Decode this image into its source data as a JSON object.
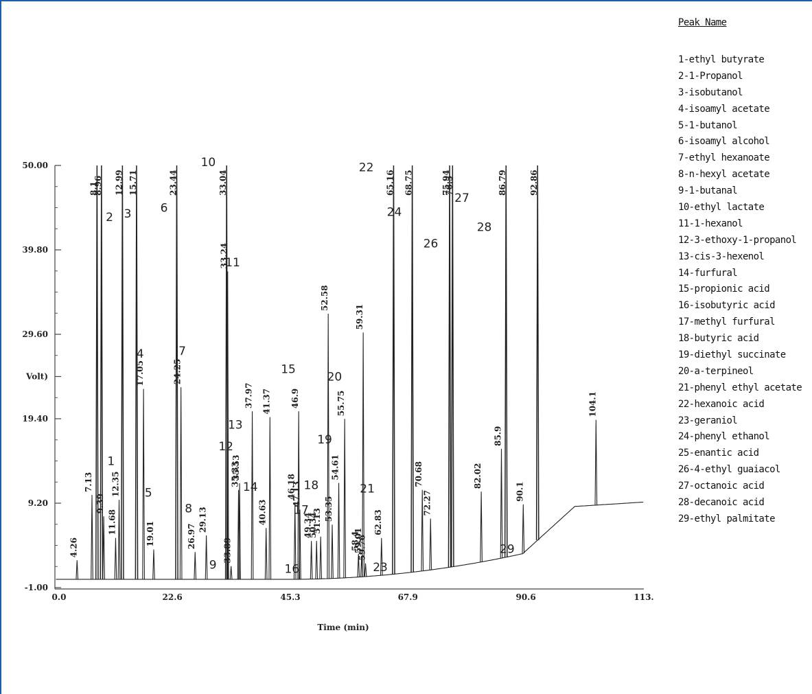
{
  "legend": {
    "title": "Peak Name",
    "items": [
      "1-ethyl butyrate",
      "2-1-Propanol",
      "3-isobutanol",
      "4-isoamyl acetate",
      "5-1-butanol",
      "6-isoamyl alcohol",
      "7-ethyl hexanoate",
      "8-n-hexyl acetate",
      "9-1-butanal",
      "10-ethyl lactate",
      "11-1-hexanol",
      "12-3-ethoxy-1-propanol",
      "13-cis-3-hexenol",
      "14-furfural",
      "15-propionic acid",
      "16-isobutyric acid",
      "17-methyl furfural",
      "18-butyric acid",
      "19-diethyl succinate",
      "20-a-terpineol",
      "21-phenyl ethyl acetate",
      "22-hexanoic acid",
      "23-geraniol",
      "24-phenyl ethanol",
      "25-enantic acid",
      "26-4-ethyl guaiacol",
      "27-octanoic acid",
      "28-decanoic acid",
      "29-ethyl palmitate"
    ]
  },
  "chart_data": {
    "type": "line",
    "xlabel": "Time (min)",
    "ylabel": "Volt)",
    "xlim": [
      0,
      113.3
    ],
    "ylim": [
      -1.0,
      50.0
    ],
    "x_ticks": [
      "0.0",
      "22.6",
      "45.3",
      "67.9",
      "90.6",
      "113."
    ],
    "x_tick_values": [
      0,
      22.6,
      45.3,
      67.9,
      90.6,
      113.3
    ],
    "y_ticks": [
      "50.00",
      "39.80",
      "29.60",
      "Volt)",
      "19.40",
      "9.20",
      "-1.00"
    ],
    "y_tick_values": [
      50.0,
      39.8,
      29.6,
      24.5,
      19.4,
      9.2,
      -1.0
    ],
    "peaks": [
      {
        "rt": 4.26,
        "h": 2.3,
        "label": "4.26"
      },
      {
        "rt": 7.13,
        "h": 10.2,
        "label": "7.13"
      },
      {
        "rt": 8.1,
        "h": 50.0,
        "label": "8.1"
      },
      {
        "rt": 8.96,
        "h": 50.0,
        "label": "8.96"
      },
      {
        "rt": 9.39,
        "h": 7.6,
        "label": "9.39"
      },
      {
        "rt": 11.68,
        "h": 5.0,
        "label": "11.68"
      },
      {
        "rt": 12.35,
        "h": 9.6,
        "label": "12.35"
      },
      {
        "rt": 12.99,
        "h": 50.0,
        "label": "12.99"
      },
      {
        "rt": 15.71,
        "h": 50.0,
        "label": "15.71"
      },
      {
        "rt": 17.05,
        "h": 23.0,
        "label": "17.05"
      },
      {
        "rt": 19.01,
        "h": 3.6,
        "label": "19.01"
      },
      {
        "rt": 23.44,
        "h": 50.0,
        "label": "23.44"
      },
      {
        "rt": 24.25,
        "h": 23.2,
        "label": "24.25"
      },
      {
        "rt": 26.97,
        "h": 3.3,
        "label": "26.97"
      },
      {
        "rt": 29.13,
        "h": 5.3,
        "label": "29.13"
      },
      {
        "rt": 33.04,
        "h": 50.0,
        "label": "33.04"
      },
      {
        "rt": 33.24,
        "h": 37.2,
        "label": "33.24"
      },
      {
        "rt": 33.89,
        "h": 1.6,
        "label": "33.89"
      },
      {
        "rt": 35.33,
        "h": 10.8,
        "label": "35.33"
      },
      {
        "rt": 35.53,
        "h": 11.6,
        "label": "35.53"
      },
      {
        "rt": 37.97,
        "h": 20.3,
        "label": "37.97"
      },
      {
        "rt": 40.63,
        "h": 6.2,
        "label": "40.63"
      },
      {
        "rt": 41.37,
        "h": 19.6,
        "label": "41.37"
      },
      {
        "rt": 46.18,
        "h": 9.3,
        "label": "46.18"
      },
      {
        "rt": 46.9,
        "h": 20.3,
        "label": "46.9"
      },
      {
        "rt": 47.13,
        "h": 8.4,
        "label": "47.13"
      },
      {
        "rt": 49.34,
        "h": 4.6,
        "label": "49.34"
      },
      {
        "rt": 50.34,
        "h": 4.6,
        "label": "50.34"
      },
      {
        "rt": 51.13,
        "h": 5.1,
        "label": "51.13"
      },
      {
        "rt": 52.58,
        "h": 32.0,
        "label": "52.58"
      },
      {
        "rt": 53.35,
        "h": 6.5,
        "label": "53.35"
      },
      {
        "rt": 54.61,
        "h": 11.5,
        "label": "54.61"
      },
      {
        "rt": 55.75,
        "h": 19.2,
        "label": "55.75"
      },
      {
        "rt": 58.4,
        "h": 2.8,
        "label": "58.4"
      },
      {
        "rt": 59.01,
        "h": 2.5,
        "label": "59.01"
      },
      {
        "rt": 59.31,
        "h": 29.5,
        "label": "59.31"
      },
      {
        "rt": 59.76,
        "h": 1.6,
        "label": "59.76"
      },
      {
        "rt": 62.83,
        "h": 4.5,
        "label": "62.83"
      },
      {
        "rt": 65.16,
        "h": 50.0,
        "label": "65.16"
      },
      {
        "rt": 68.75,
        "h": 50.0,
        "label": "68.75"
      },
      {
        "rt": 70.68,
        "h": 9.8,
        "label": "70.68"
      },
      {
        "rt": 72.27,
        "h": 6.2,
        "label": "72.27"
      },
      {
        "rt": 75.94,
        "h": 50.0,
        "label": "75.94"
      },
      {
        "rt": 76.5,
        "h": 50.0,
        "label": "76.5"
      },
      {
        "rt": 82.02,
        "h": 8.5,
        "label": "82.02"
      },
      {
        "rt": 85.9,
        "h": 13.2,
        "label": "85.9"
      },
      {
        "rt": 86.79,
        "h": 50.0,
        "label": "86.79"
      },
      {
        "rt": 90.1,
        "h": 5.9,
        "label": "90.1"
      },
      {
        "rt": 92.86,
        "h": 50.0,
        "label": "92.86"
      },
      {
        "rt": 104.1,
        "h": 10.3,
        "label": "104.1"
      }
    ],
    "peak_numbers": [
      {
        "n": "1",
        "x": 10.8,
        "y": 13.8
      },
      {
        "n": "2",
        "x": 10.5,
        "y": 43.3
      },
      {
        "n": "3",
        "x": 14.0,
        "y": 43.7
      },
      {
        "n": "4",
        "x": 16.4,
        "y": 26.8
      },
      {
        "n": "5",
        "x": 18.0,
        "y": 10.0
      },
      {
        "n": "6",
        "x": 21.0,
        "y": 44.4
      },
      {
        "n": "7",
        "x": 24.5,
        "y": 27.1
      },
      {
        "n": "8",
        "x": 25.7,
        "y": 8.1
      },
      {
        "n": "9",
        "x": 30.4,
        "y": 1.3
      },
      {
        "n": "10",
        "x": 29.5,
        "y": 49.9
      },
      {
        "n": "11",
        "x": 34.2,
        "y": 37.8
      },
      {
        "n": "12",
        "x": 32.9,
        "y": 15.6
      },
      {
        "n": "13",
        "x": 34.7,
        "y": 18.2
      },
      {
        "n": "14",
        "x": 37.6,
        "y": 10.7
      },
      {
        "n": "15",
        "x": 44.9,
        "y": 24.9
      },
      {
        "n": "16",
        "x": 45.6,
        "y": 0.8
      },
      {
        "n": "17",
        "x": 47.4,
        "y": 7.9
      },
      {
        "n": "18",
        "x": 49.3,
        "y": 10.9
      },
      {
        "n": "19",
        "x": 51.9,
        "y": 16.4
      },
      {
        "n": "20",
        "x": 53.8,
        "y": 24.0
      },
      {
        "n": "21",
        "x": 60.1,
        "y": 10.5
      },
      {
        "n": "22",
        "x": 59.9,
        "y": 49.3
      },
      {
        "n": "23",
        "x": 62.6,
        "y": 1.0
      },
      {
        "n": "24",
        "x": 65.3,
        "y": 43.9
      },
      {
        "n": "26",
        "x": 72.3,
        "y": 40.1
      },
      {
        "n": "27",
        "x": 78.3,
        "y": 45.6
      },
      {
        "n": "28",
        "x": 82.6,
        "y": 42.1
      },
      {
        "n": "29",
        "x": 87.0,
        "y": 3.2
      }
    ]
  }
}
